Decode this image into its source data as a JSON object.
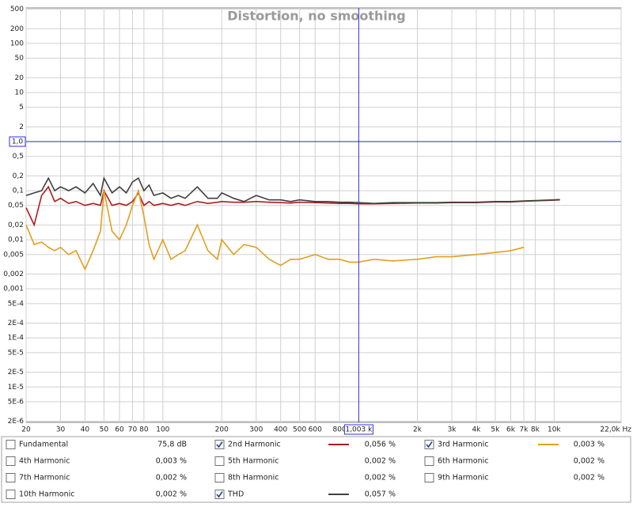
{
  "chart_data": {
    "type": "line",
    "title": "Distortion, no smoothing",
    "log_x": true,
    "log_y": true,
    "grid": true,
    "xlim": [
      20,
      22000
    ],
    "ylim": [
      1.9e-06,
      530
    ],
    "xticks": [
      20,
      30,
      40,
      50,
      60,
      70,
      80,
      100,
      200,
      300,
      400,
      500,
      600,
      800,
      {
        "value": 2000,
        "label": "2k"
      },
      {
        "value": 3000,
        "label": "3k"
      },
      {
        "value": 4000,
        "label": "4k"
      },
      {
        "value": 5000,
        "label": "5k"
      },
      {
        "value": 6000,
        "label": "6k"
      },
      {
        "value": 7000,
        "label": "7k"
      },
      {
        "value": 8000,
        "label": "8k"
      },
      {
        "value": 10000,
        "label": "10k"
      },
      {
        "value": 22000,
        "label": "22,0k Hz"
      }
    ],
    "yticks": [
      500,
      200,
      100,
      50,
      20,
      10,
      5,
      2,
      {
        "value": 0.5,
        "label": "0,5"
      },
      {
        "value": 0.2,
        "label": "0,2"
      },
      {
        "value": 0.1,
        "label": "0,1"
      },
      {
        "value": 0.05,
        "label": "0,05"
      },
      {
        "value": 0.02,
        "label": "0,02"
      },
      {
        "value": 0.01,
        "label": "0,01"
      },
      {
        "value": 0.005,
        "label": "0,005"
      },
      {
        "value": 0.002,
        "label": "0,002"
      },
      {
        "value": 0.001,
        "label": "0,001"
      },
      {
        "value": 0.0005,
        "label": "5E-4"
      },
      {
        "value": 0.0002,
        "label": "2E-4"
      },
      {
        "value": 0.0001,
        "label": "1E-4"
      },
      {
        "value": 5e-05,
        "label": "5E-5"
      },
      {
        "value": 2e-05,
        "label": "2E-5"
      },
      {
        "value": 1e-05,
        "label": "1E-5"
      },
      {
        "value": 5e-06,
        "label": "5E-6"
      },
      {
        "value": 2e-06,
        "label": "2E-6"
      }
    ],
    "cursor_x": {
      "value": 1003,
      "label": "1,003 k"
    },
    "cursor_y": {
      "value": 1,
      "label": "1,0"
    },
    "x": [
      20,
      22,
      24,
      26,
      28,
      30,
      33,
      36,
      40,
      44,
      48,
      50,
      55,
      60,
      65,
      70,
      75,
      80,
      85,
      90,
      100,
      110,
      120,
      130,
      150,
      170,
      190,
      200,
      230,
      260,
      300,
      350,
      400,
      450,
      500,
      600,
      700,
      800,
      900,
      1000,
      1200,
      1500,
      2000,
      2500,
      3000,
      4000,
      5000,
      6000,
      7000,
      8000,
      10000,
      10700
    ],
    "series": [
      {
        "name": "Fundamental",
        "color": "#a0522d",
        "readout": "75,8 dB",
        "checked": false
      },
      {
        "name": "2nd Harmonic",
        "color": "#b01c1c",
        "readout": "0,056 %",
        "checked": true,
        "values": [
          0.045,
          0.02,
          0.08,
          0.12,
          0.06,
          0.07,
          0.055,
          0.06,
          0.05,
          0.055,
          0.05,
          0.1,
          0.05,
          0.055,
          0.05,
          0.06,
          0.09,
          0.05,
          0.06,
          0.05,
          0.055,
          0.05,
          0.055,
          0.05,
          0.06,
          0.055,
          0.058,
          0.06,
          0.058,
          0.058,
          0.06,
          0.058,
          0.057,
          0.056,
          0.058,
          0.057,
          0.056,
          0.055,
          0.055,
          0.054,
          0.054,
          0.055,
          0.056,
          0.056,
          0.057,
          0.057,
          0.059,
          0.059,
          0.061,
          0.062,
          0.064,
          0.065
        ]
      },
      {
        "name": "3rd Harmonic",
        "color": "#e0a020",
        "readout": "0,003 %",
        "checked": true,
        "values": [
          0.02,
          0.008,
          0.009,
          0.007,
          0.006,
          0.007,
          0.005,
          0.006,
          0.0025,
          0.006,
          0.015,
          0.1,
          0.015,
          0.01,
          0.02,
          0.05,
          0.1,
          0.03,
          0.008,
          0.004,
          0.01,
          0.004,
          0.005,
          0.006,
          0.02,
          0.006,
          0.004,
          0.01,
          0.005,
          0.008,
          0.007,
          0.004,
          0.003,
          0.004,
          0.004,
          0.005,
          0.004,
          0.004,
          0.0035,
          0.0035,
          0.004,
          0.0037,
          0.004,
          0.0045,
          0.0045,
          0.005,
          0.0055,
          0.006,
          0.007,
          null,
          null,
          null
        ]
      },
      {
        "name": "4th Harmonic",
        "color": "#c8c850",
        "readout": "0,003 %",
        "checked": false
      },
      {
        "name": "5th Harmonic",
        "color": "#a0c040",
        "readout": "0,002 %",
        "checked": false
      },
      {
        "name": "6th Harmonic",
        "color": "#6090e0",
        "readout": "0,002 %",
        "checked": false
      },
      {
        "name": "7th Harmonic",
        "color": "#e070d0",
        "readout": "0,002 %",
        "checked": false
      },
      {
        "name": "8th Harmonic",
        "color": "#909090",
        "readout": "0,002 %",
        "checked": false
      },
      {
        "name": "9th Harmonic",
        "color": "#20b0b0",
        "readout": "0,002 %",
        "checked": false
      },
      {
        "name": "10th Harmonic",
        "color": "#909020",
        "readout": "0,002 %",
        "checked": false
      },
      {
        "name": "THD",
        "color": "#404040",
        "readout": "0,057 %",
        "checked": true,
        "values": [
          0.08,
          0.09,
          0.1,
          0.18,
          0.1,
          0.12,
          0.1,
          0.12,
          0.09,
          0.14,
          0.08,
          0.18,
          0.09,
          0.12,
          0.09,
          0.15,
          0.18,
          0.1,
          0.13,
          0.08,
          0.09,
          0.07,
          0.08,
          0.07,
          0.12,
          0.07,
          0.07,
          0.09,
          0.07,
          0.06,
          0.08,
          0.065,
          0.065,
          0.06,
          0.065,
          0.06,
          0.06,
          0.058,
          0.058,
          0.057,
          0.055,
          0.057,
          0.057,
          0.057,
          0.058,
          0.058,
          0.06,
          0.06,
          0.062,
          0.063,
          0.065,
          0.066
        ]
      }
    ]
  }
}
